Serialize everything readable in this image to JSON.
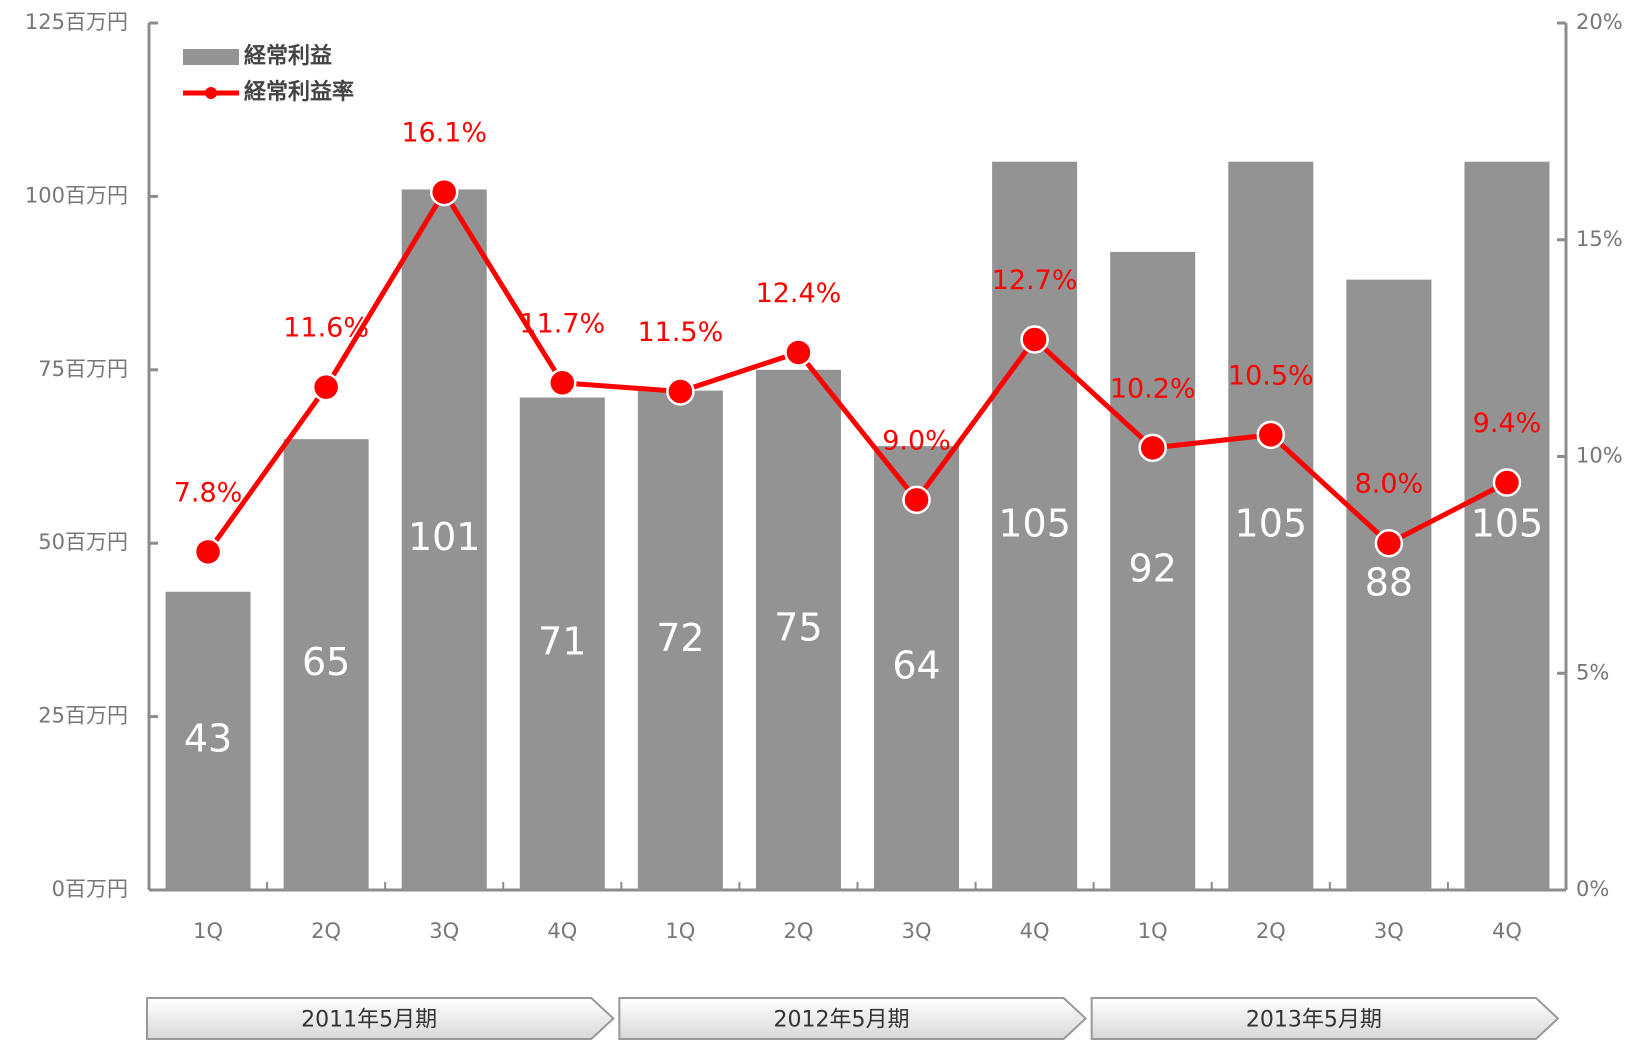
{
  "chart_data": {
    "type": "bar_line",
    "categories": [
      "1Q",
      "2Q",
      "3Q",
      "4Q",
      "1Q",
      "2Q",
      "3Q",
      "4Q",
      "1Q",
      "2Q",
      "3Q",
      "4Q"
    ],
    "periods": [
      "2011年5月期",
      "2012年5月期",
      "2013年5月期"
    ],
    "series": [
      {
        "name": "経常利益",
        "type": "bar",
        "color": "#939393",
        "values": [
          43,
          65,
          101,
          71,
          72,
          75,
          64,
          105,
          92,
          105,
          88,
          105
        ]
      },
      {
        "name": "経常利益率",
        "type": "line",
        "axis": "y2",
        "color": "#ff0000",
        "values": [
          7.8,
          11.6,
          16.1,
          11.7,
          11.5,
          12.4,
          9.0,
          12.7,
          10.2,
          10.5,
          8.0,
          9.4
        ],
        "value_labels": [
          "7.8%",
          "11.6%",
          "16.1%",
          "11.7%",
          "11.5%",
          "12.4%",
          "9.0%",
          "12.7%",
          "10.2%",
          "10.5%",
          "8.0%",
          "9.4%"
        ]
      }
    ],
    "ylim": [
      0,
      125
    ],
    "yticks": [
      {
        "value": 0,
        "label": "0百万円"
      },
      {
        "value": 25,
        "label": "25百万円"
      },
      {
        "value": 50,
        "label": "50百万円"
      },
      {
        "value": 75,
        "label": "75百万円"
      },
      {
        "value": 100,
        "label": "100百万円"
      },
      {
        "value": 125,
        "label": "125百万円"
      }
    ],
    "y2lim": [
      0,
      20
    ],
    "y2ticks": [
      {
        "value": 0,
        "label": "0%"
      },
      {
        "value": 5,
        "label": "5%"
      },
      {
        "value": 10,
        "label": "10%"
      },
      {
        "value": 15,
        "label": "15%"
      },
      {
        "value": 20,
        "label": "20%"
      }
    ],
    "legend": "top-left"
  }
}
